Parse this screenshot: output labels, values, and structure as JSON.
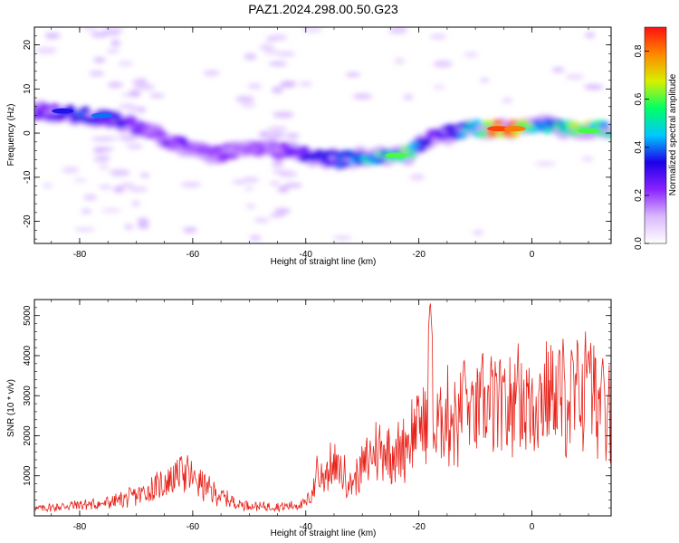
{
  "title": "PAZ1.2024.298.00.50.G23",
  "colors": {
    "line": "#e8221a",
    "colormap": [
      "#ffffff",
      "#d9b8ff",
      "#8a22ff",
      "#1e00e8",
      "#00c8ff",
      "#00ff66",
      "#d8f000",
      "#ff8800",
      "#ff1010"
    ]
  },
  "chart_data": [
    {
      "type": "heatmap",
      "title": "",
      "xlabel": "Height of straight line (km)",
      "ylabel": "Frequency (Hz)",
      "xlim": [
        -88,
        14
      ],
      "ylim": [
        -25,
        24
      ],
      "xticks": [
        -80,
        -60,
        -40,
        -20,
        0
      ],
      "yticks": [
        -20,
        -10,
        0,
        10,
        20
      ],
      "colorbar": {
        "label": "Normalized spectral amplitude",
        "range": [
          0,
          0.9
        ],
        "ticks": [
          0.0,
          0.2,
          0.4,
          0.6,
          0.8
        ]
      },
      "ridge": {
        "x": [
          -86,
          -80,
          -74,
          -68,
          -62,
          -56,
          -50,
          -44,
          -40,
          -34,
          -28,
          -22,
          -18,
          -14,
          -10,
          -6,
          -2,
          2,
          6,
          10,
          14
        ],
        "y": [
          5,
          4,
          3,
          1,
          -3,
          -5,
          -3,
          -4,
          -5,
          -6,
          -5,
          -5,
          -1,
          0,
          1,
          1,
          1,
          2,
          1,
          1,
          1
        ],
        "amplitude": [
          0.25,
          0.35,
          0.3,
          0.2,
          0.22,
          0.2,
          0.18,
          0.2,
          0.3,
          0.35,
          0.45,
          0.55,
          0.25,
          0.3,
          0.5,
          0.85,
          0.7,
          0.4,
          0.55,
          0.6,
          0.45
        ]
      }
    },
    {
      "type": "line",
      "title": "",
      "xlabel": "Height of straight line (km)",
      "ylabel": "SNR (10 * v/v)",
      "xlim": [
        -88,
        14
      ],
      "ylim": [
        0,
        5400
      ],
      "xticks": [
        -80,
        -60,
        -40,
        -20,
        0
      ],
      "yticks": [
        1000,
        2000,
        3000,
        4000,
        5000
      ],
      "series": [
        {
          "x": [
            -88,
            -84,
            -80,
            -76,
            -72,
            -68,
            -64,
            -62,
            -60,
            -56,
            -52,
            -48,
            -44,
            -40,
            -38,
            -36,
            -34,
            -32,
            -30,
            -28,
            -26,
            -24,
            -22,
            -20,
            -18,
            -17,
            -16,
            -14,
            -12,
            -10,
            -8,
            -6,
            -4,
            -2,
            0,
            2,
            4,
            6,
            8,
            10,
            12,
            14
          ],
          "y": [
            180,
            220,
            280,
            300,
            420,
            600,
            900,
            1050,
            950,
            550,
            300,
            230,
            230,
            300,
            800,
            1200,
            1150,
            800,
            1200,
            1600,
            1700,
            1500,
            1900,
            2300,
            2400,
            2000,
            2500,
            2500,
            2400,
            2600,
            2800,
            2700,
            2600,
            2900,
            2800,
            3000,
            3100,
            2900,
            3000,
            3100,
            2700,
            3000
          ],
          "peaks": [
            {
              "x": -62,
              "y": 1600
            },
            {
              "x": -38,
              "y": 1550
            },
            {
              "x": -18,
              "y": 5400
            },
            {
              "x": -12,
              "y": 4000
            },
            {
              "x": -2.5,
              "y": 3750
            },
            {
              "x": 10,
              "y": 4200
            },
            {
              "x": 12.5,
              "y": 4000
            }
          ]
        }
      ]
    }
  ]
}
